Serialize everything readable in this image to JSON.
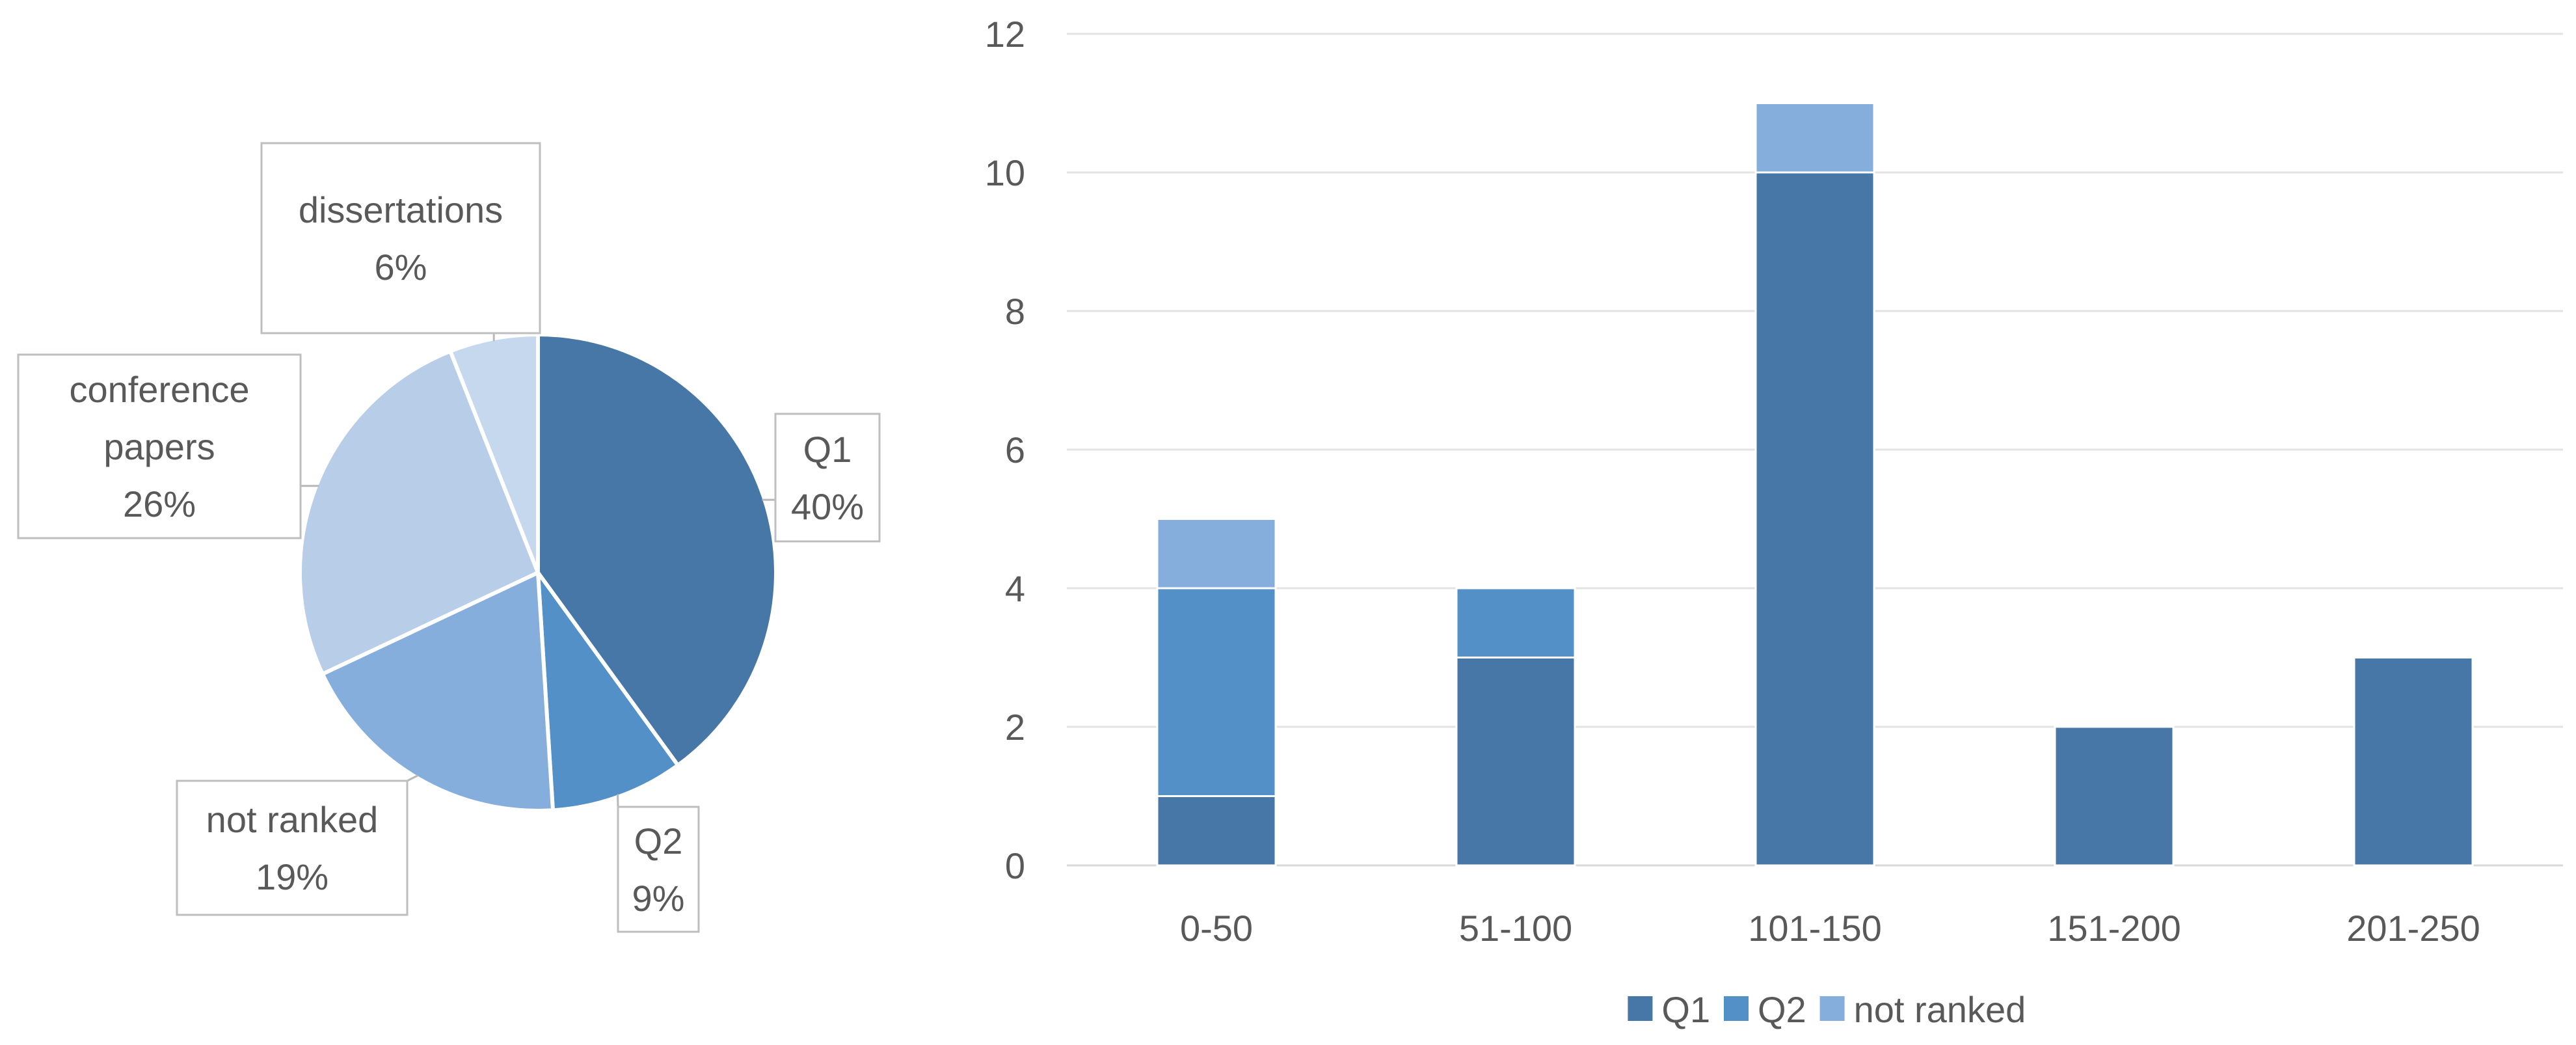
{
  "chart_data": [
    {
      "type": "pie",
      "slices": [
        {
          "label": "Q1",
          "value": 40,
          "percent_label": "40%",
          "color": "#4677A6"
        },
        {
          "label": "Q2",
          "value": 9,
          "percent_label": "9%",
          "color": "#5390C8"
        },
        {
          "label": "not ranked",
          "value": 19,
          "percent_label": "19%",
          "color": "#86AEDD"
        },
        {
          "label": "conference papers",
          "value": 26,
          "percent_label": "26%",
          "color": "#B7CDE8"
        },
        {
          "label": "dissertations",
          "value": 6,
          "percent_label": "6%",
          "color": "#C6D8EE"
        }
      ]
    },
    {
      "type": "bar",
      "stacked": true,
      "categories": [
        "0-50",
        "51-100",
        "101-150",
        "151-200",
        "201-250"
      ],
      "series": [
        {
          "name": "Q1",
          "values": [
            1,
            3,
            10,
            2,
            3
          ],
          "color": "#4677A6"
        },
        {
          "name": "Q2",
          "values": [
            3,
            1,
            0,
            0,
            0
          ],
          "color": "#5390C8"
        },
        {
          "name": "not ranked",
          "values": [
            1,
            0,
            1,
            0,
            0
          ],
          "color": "#86AEDD"
        }
      ],
      "ylim": [
        0,
        12
      ],
      "yticks": [
        0,
        2,
        4,
        6,
        8,
        10,
        12
      ],
      "grid": true,
      "legend_position": "bottom"
    }
  ]
}
